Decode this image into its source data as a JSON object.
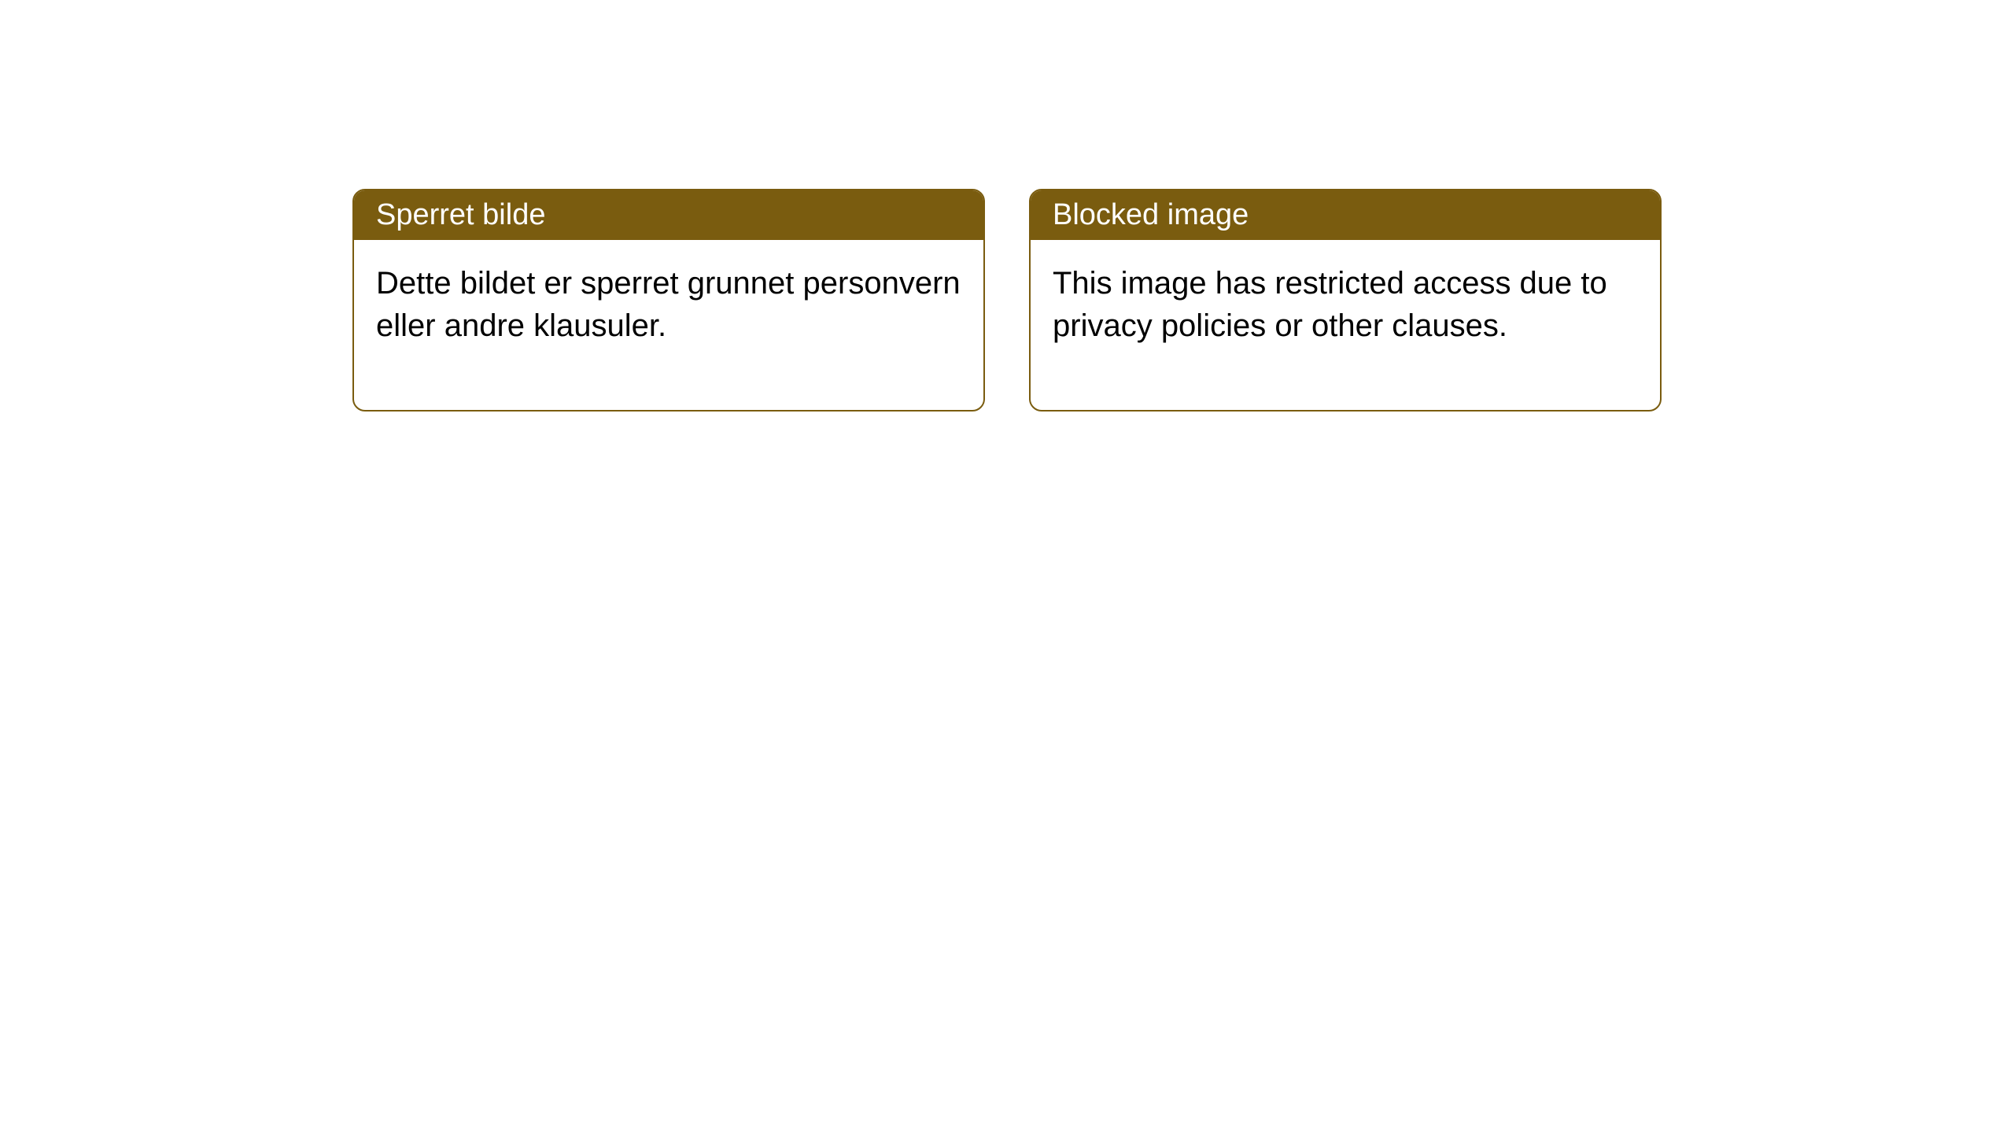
{
  "cards": [
    {
      "title": "Sperret bilde",
      "body": "Dette bildet er sperret grunnet personvern eller andre klausuler."
    },
    {
      "title": "Blocked image",
      "body": "This image has restricted access due to privacy policies or other clauses."
    }
  ],
  "style": {
    "header_bg": "#7a5c0f",
    "header_text_color": "#ffffff",
    "border_color": "#7a5c0f",
    "body_bg": "#ffffff",
    "body_text_color": "#000000",
    "border_radius": 16,
    "title_fontsize": 38,
    "body_fontsize": 40
  }
}
